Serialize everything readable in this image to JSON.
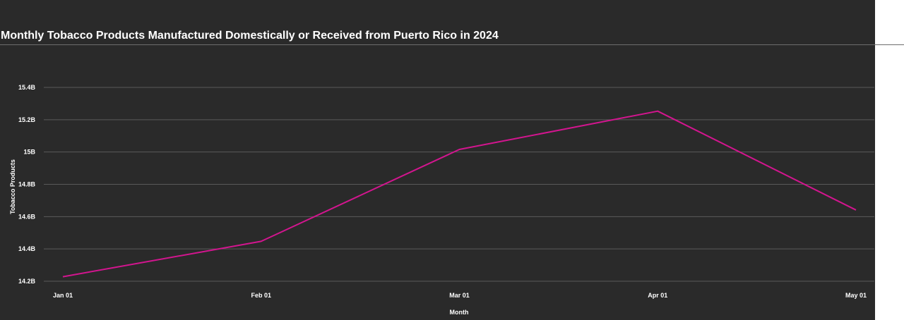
{
  "chart_data": {
    "type": "line",
    "title": "Monthly Tobacco Products Manufactured Domestically or Received from Puerto Rico in 2024",
    "xlabel": "Month",
    "ylabel": "Tobacco Products",
    "categories": [
      "Jan 01",
      "Feb 01",
      "Mar 01",
      "Apr 01",
      "May 01"
    ],
    "x": [
      "2024-01-01",
      "2024-02-01",
      "2024-03-01",
      "2024-04-01",
      "2024-05-01"
    ],
    "series": [
      {
        "color": "#d3158f",
        "values": [
          14228000000,
          14447000000,
          15016000000,
          15253000000,
          14641000000
        ]
      }
    ],
    "ylim": [
      14200000000,
      15400000000
    ],
    "y_ticks": [
      14200000000,
      14400000000,
      14600000000,
      14800000000,
      15000000000,
      15200000000,
      15400000000
    ],
    "y_tick_labels": [
      "14.2B",
      "14.4B",
      "14.6B",
      "14.8B",
      "15B",
      "15.2B",
      "15.4B"
    ],
    "grid": true,
    "legend": "none",
    "background_color": "#2a2a2a",
    "gridline_color": "#5a5a5a"
  }
}
